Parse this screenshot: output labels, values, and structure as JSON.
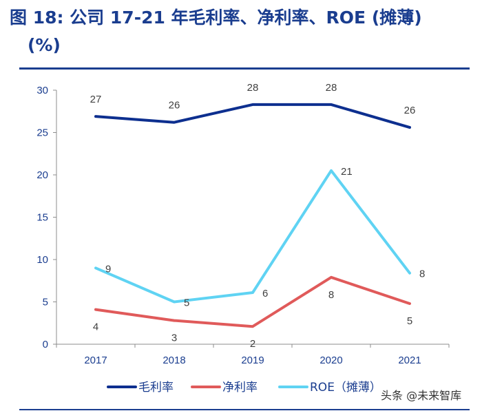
{
  "title": {
    "line1": "图 18: 公司 17-21 年毛利率、净利率、ROE (摊薄)",
    "line2": "(%)"
  },
  "watermark": "头条 @未来智库",
  "chart_data": {
    "type": "line",
    "title": "图 18: 公司 17-21 年毛利率、净利率、ROE (摊薄) (%)",
    "categories": [
      "2017",
      "2018",
      "2019",
      "2020",
      "2021"
    ],
    "ylim": [
      0,
      30
    ],
    "yticks": [
      0,
      5,
      10,
      15,
      20,
      25,
      30
    ],
    "xlabel": "",
    "ylabel": "",
    "grid": false,
    "legend_position": "bottom",
    "series": [
      {
        "name": "毛利率",
        "color": "#0d2f8f",
        "values": [
          26.9,
          26.2,
          28.3,
          28.3,
          25.6
        ],
        "labels": [
          "27",
          "26",
          "28",
          "28",
          "26"
        ],
        "label_pos": "above"
      },
      {
        "name": "净利率",
        "color": "#e05a5a",
        "values": [
          4.1,
          2.8,
          2.1,
          7.9,
          4.8
        ],
        "labels": [
          "4",
          "3",
          "2",
          "8",
          "5"
        ],
        "label_pos": "below"
      },
      {
        "name": "ROE（摊薄）",
        "color": "#5fd3f3",
        "values": [
          9.0,
          5.0,
          6.1,
          20.5,
          8.4
        ],
        "labels": [
          "9",
          "5",
          "6",
          "21",
          "8"
        ],
        "label_pos": "right"
      }
    ]
  }
}
